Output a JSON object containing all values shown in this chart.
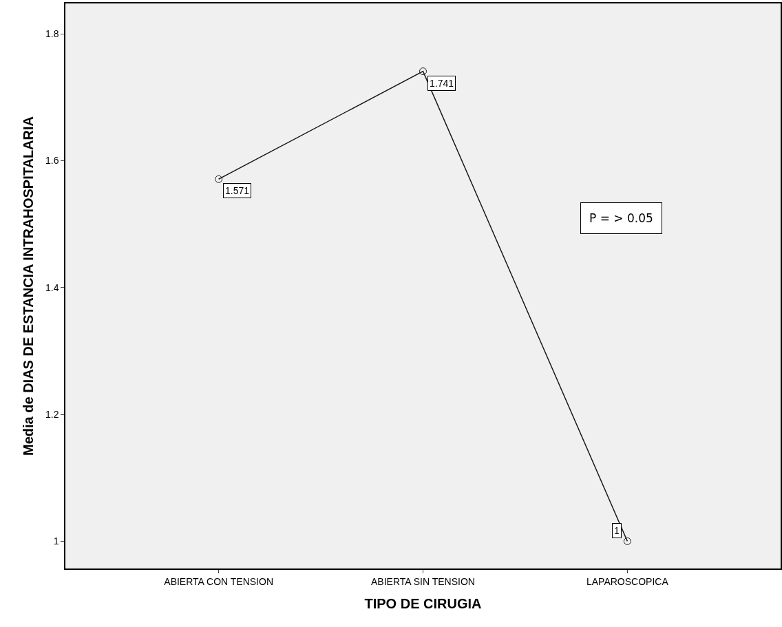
{
  "chart_data": {
    "type": "line",
    "xlabel": "TIPO DE CIRUGIA",
    "ylabel": "Media de DIAS DE ESTANCIA INTRAHOSPITALARIA",
    "categories": [
      "ABIERTA CON TENSION",
      "ABIERTA SIN TENSION",
      "LAPAROSCOPICA"
    ],
    "series": [
      {
        "color": "#1a1a1a",
        "values": [
          1.571,
          1.741,
          1
        ]
      }
    ],
    "ylim": [
      0.957,
      1.848
    ],
    "yticks": [
      1,
      1.2,
      1.4,
      1.6,
      1.8
    ],
    "data_labels": true,
    "grid": false,
    "marker": "circle",
    "line_style": "solid",
    "annotations": [
      "P = > 0.05"
    ]
  }
}
